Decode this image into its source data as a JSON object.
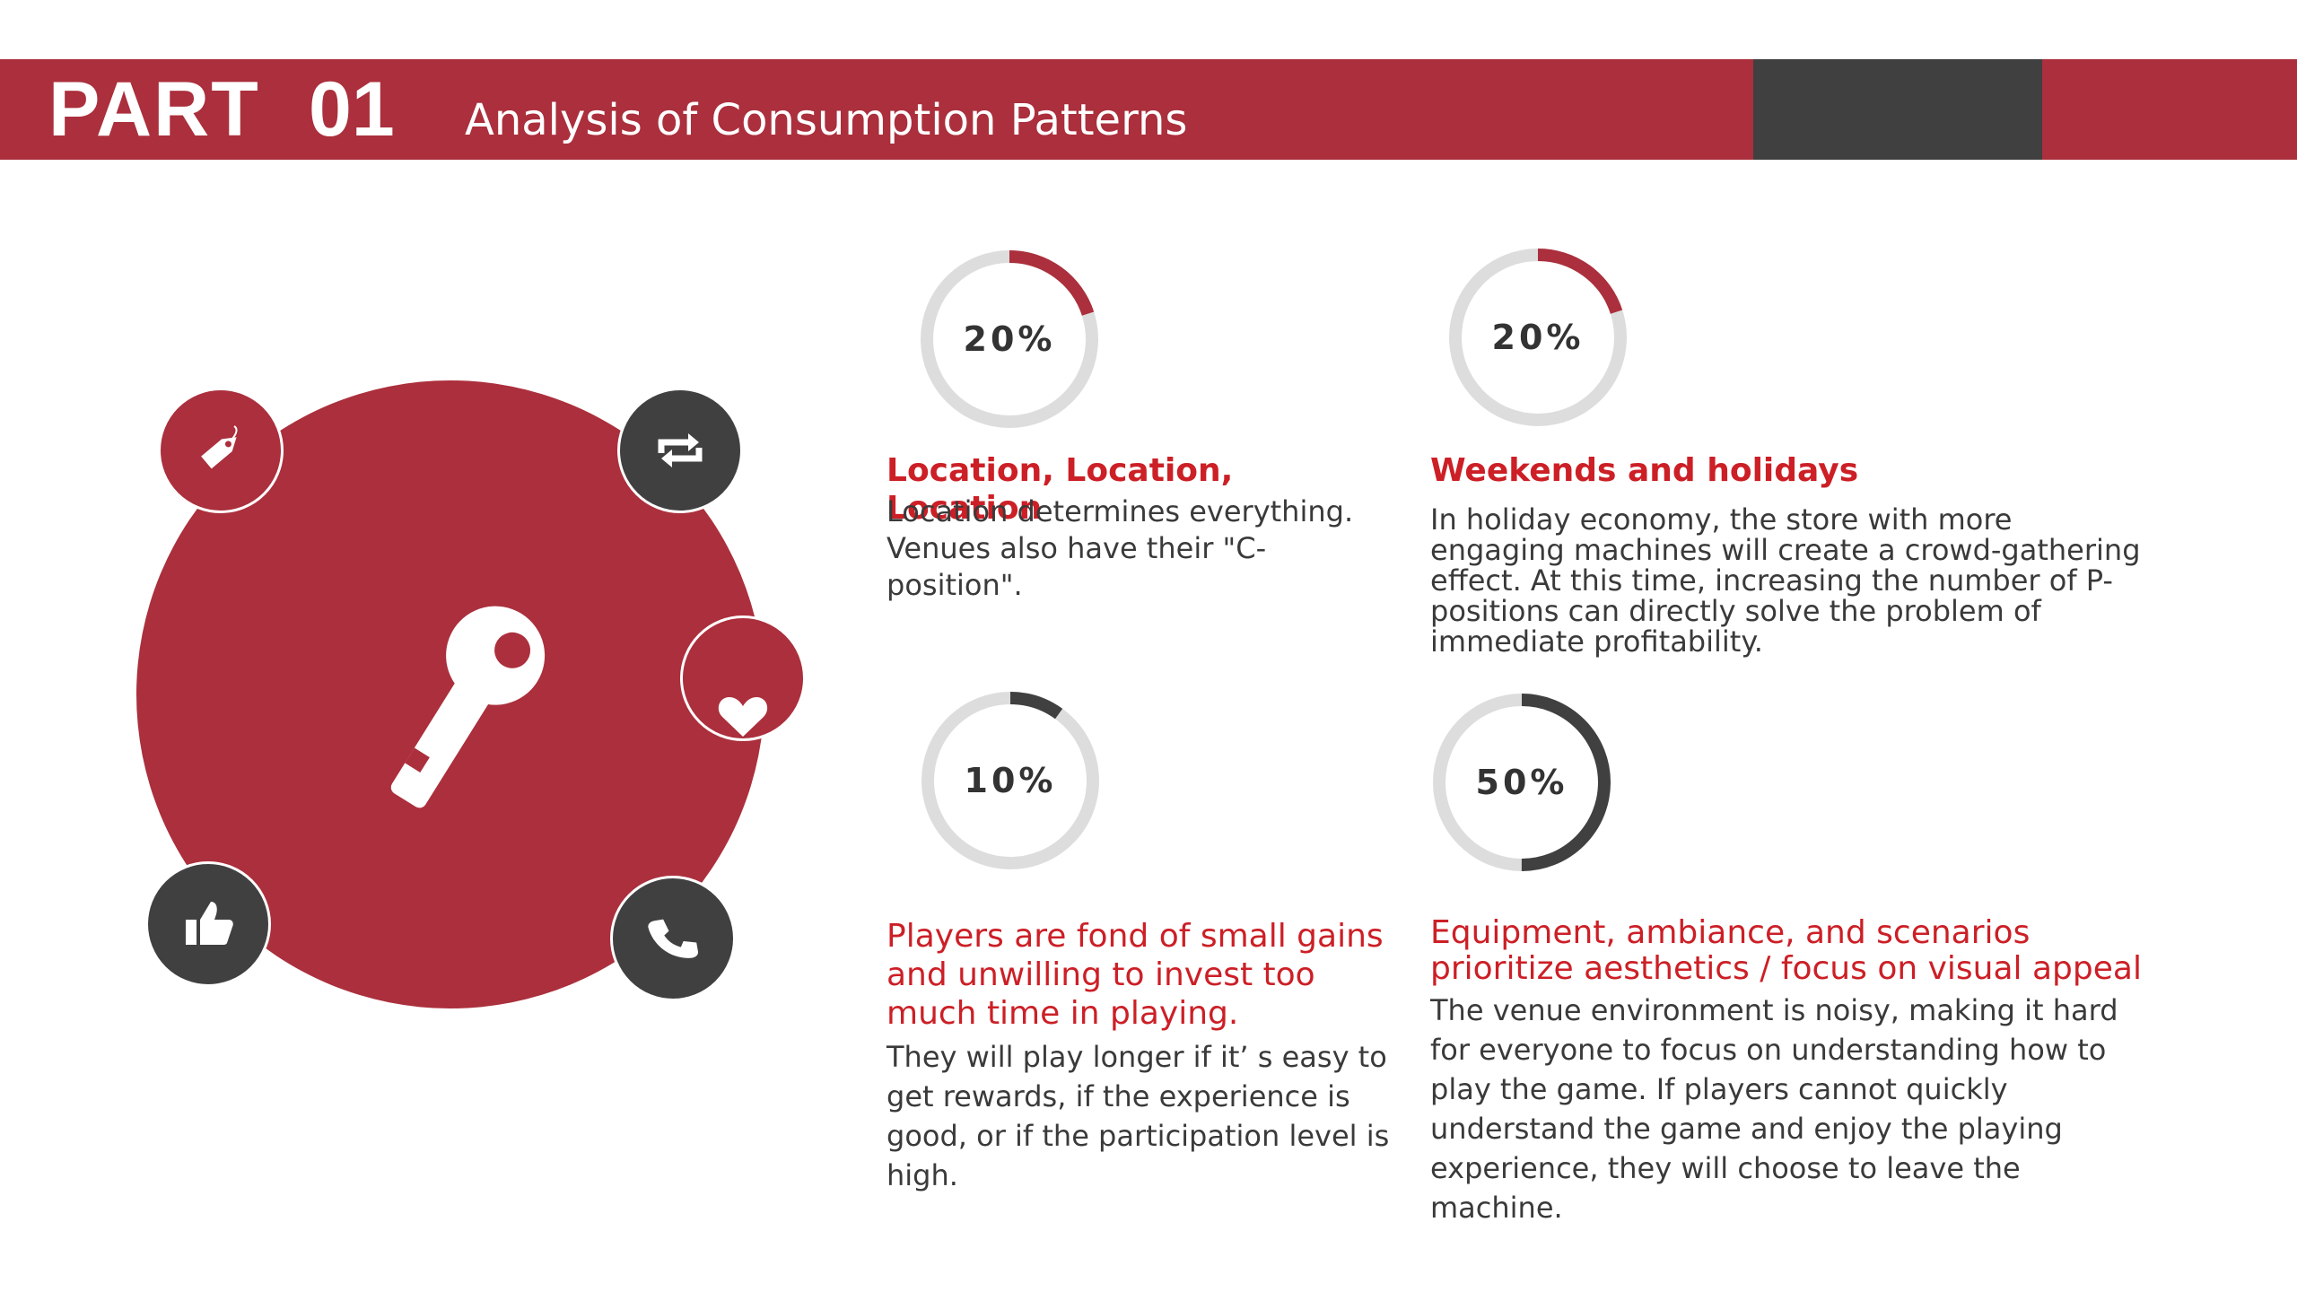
{
  "header": {
    "part_label": "PART",
    "part_number": "01",
    "title": "Analysis of Consumption Patterns"
  },
  "colors": {
    "brand_red": "#ab2f3c",
    "dark_gray": "#404040",
    "ring_track": "#dddddd",
    "title_red": "#cc1f26"
  },
  "icons": {
    "center": "key-icon",
    "orbit": [
      "tag-icon",
      "repeat-icon",
      "heart-icon",
      "thumbs-up-icon",
      "phone-icon"
    ]
  },
  "stats": [
    {
      "percent_label": "20%",
      "value": 0.2,
      "ring_color": "#ab2f3c",
      "title": "Location, Location, Location",
      "text": "Location determines everything. Venues also have their \"C-position\"."
    },
    {
      "percent_label": "20%",
      "value": 0.2,
      "ring_color": "#ab2f3c",
      "title": "Weekends and holidays",
      "text": "In holiday economy, the store with more engaging machines will create a crowd-gathering effect. At this time, increasing the number of P-positions can directly solve the problem of immediate profitability."
    },
    {
      "percent_label": "10%",
      "value": 0.1,
      "ring_color": "#404040",
      "title": "Players are fond of small gains and unwilling to invest too much time in playing.",
      "text": "They will play longer if it’ s easy to get rewards, if the experience is good, or if the participation level is high."
    },
    {
      "percent_label": "50%",
      "value": 0.5,
      "ring_color": "#404040",
      "title": "Equipment, ambiance, and scenarios prioritize aesthetics / focus on visual appeal",
      "text": "The venue environment is noisy, making it hard for everyone to focus on understanding how to play the game. If players cannot quickly understand the game and enjoy the playing experience, they will choose to leave the machine."
    }
  ]
}
